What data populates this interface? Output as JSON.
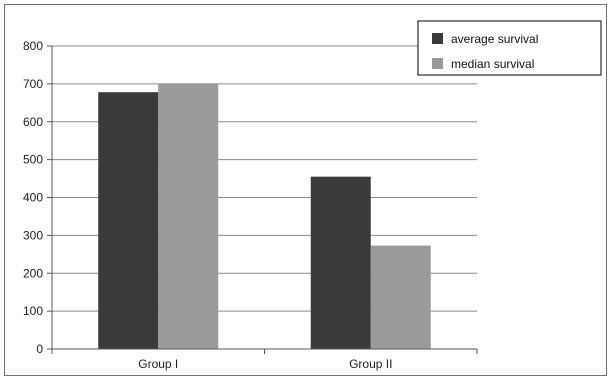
{
  "chart_data": {
    "type": "bar",
    "categories": [
      "Group I",
      "Group II"
    ],
    "series": [
      {
        "name": "average survival",
        "color": "#3a3a3a",
        "values": [
          678,
          455
        ]
      },
      {
        "name": "median survival",
        "color": "#9a9a9a",
        "values": [
          700,
          273
        ]
      }
    ],
    "title": "",
    "xlabel": "",
    "ylabel": "",
    "ylim": [
      0,
      800
    ],
    "yticks": [
      "0",
      "100",
      "200",
      "300",
      "400",
      "500",
      "600",
      "700",
      "800"
    ],
    "grid": true,
    "legend_position": "top-right"
  }
}
